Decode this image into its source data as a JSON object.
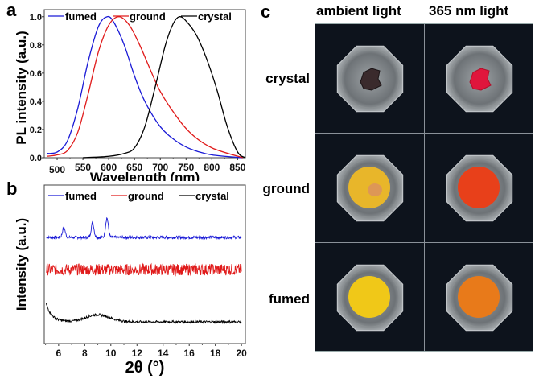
{
  "panels": {
    "a": {
      "letter": "a"
    },
    "b": {
      "letter": "b"
    },
    "c": {
      "letter": "c"
    }
  },
  "chart_data": [
    {
      "id": "a",
      "type": "line",
      "title": "",
      "xlabel": "Wavelength (nm)",
      "ylabel": "PL intensity (a.u.)",
      "xlim": [
        475,
        865
      ],
      "ylim": [
        0.0,
        1.05
      ],
      "xticks": [
        500,
        550,
        600,
        650,
        700,
        750,
        800,
        850
      ],
      "yticks": [
        0.0,
        0.2,
        0.4,
        0.6,
        0.8,
        1.0
      ],
      "ytick_labels": [
        "0.0",
        "0.2",
        "0.4",
        "0.6",
        "0.8",
        "1.0"
      ],
      "legend": {
        "placement": "top",
        "entries": [
          "fumed",
          "ground",
          "crystal"
        ]
      },
      "grid": false,
      "series": [
        {
          "name": "fumed",
          "color": "#1a1ad6",
          "peak_x": 597,
          "x": [
            480,
            500,
            520,
            540,
            560,
            580,
            597,
            610,
            630,
            650,
            670,
            700,
            730,
            760,
            800,
            860
          ],
          "y": [
            0.03,
            0.04,
            0.12,
            0.35,
            0.68,
            0.93,
            1.0,
            0.96,
            0.8,
            0.58,
            0.4,
            0.22,
            0.12,
            0.06,
            0.02,
            0.0
          ]
        },
        {
          "name": "ground",
          "color": "#e01a1a",
          "peak_x": 620,
          "x": [
            480,
            500,
            520,
            540,
            560,
            580,
            600,
            620,
            640,
            660,
            680,
            700,
            730,
            760,
            800,
            860
          ],
          "y": [
            0.01,
            0.02,
            0.05,
            0.18,
            0.45,
            0.75,
            0.94,
            1.0,
            0.94,
            0.8,
            0.63,
            0.47,
            0.3,
            0.17,
            0.07,
            0.0
          ]
        },
        {
          "name": "crystal",
          "color": "#000000",
          "peak_x": 737,
          "x": [
            550,
            600,
            630,
            650,
            670,
            690,
            710,
            725,
            737,
            750,
            770,
            790,
            810,
            830,
            850,
            865
          ],
          "y": [
            0.0,
            0.01,
            0.03,
            0.07,
            0.22,
            0.5,
            0.8,
            0.95,
            1.0,
            0.97,
            0.87,
            0.7,
            0.48,
            0.22,
            0.04,
            0.0
          ]
        }
      ]
    },
    {
      "id": "b",
      "type": "line",
      "title": "",
      "xlabel": "2θ (°)",
      "ylabel": "Intensity (a.u.)",
      "xlim": [
        4.9,
        20.3
      ],
      "xticks": [
        6,
        8,
        10,
        12,
        14,
        16,
        18,
        20
      ],
      "yticks": [],
      "legend": {
        "placement": "top",
        "entries": [
          "fumed",
          "ground",
          "crystal"
        ]
      },
      "grid": false,
      "series": [
        {
          "name": "fumed",
          "color": "#1a1ad6",
          "offset": 2.0,
          "noise": 0.06,
          "peaks_2theta": [
            6.4,
            8.6,
            9.7
          ],
          "peak_heights": [
            0.3,
            0.45,
            0.6
          ]
        },
        {
          "name": "ground",
          "color": "#e01a1a",
          "offset": 1.0,
          "noise": 0.18,
          "peaks_2theta": [],
          "peak_heights": []
        },
        {
          "name": "crystal",
          "color": "#000000",
          "offset": 0.0,
          "noise": 0.05,
          "broad_hump_2theta": 9.0,
          "low_angle_rise": true
        }
      ]
    }
  ],
  "photo_grid": {
    "columns": [
      "ambient light",
      "365 nm light"
    ],
    "rows": [
      "crystal",
      "ground",
      "fumed"
    ],
    "sample_colors": [
      [
        "#3a2a2c",
        "#e0163c"
      ],
      [
        "#e8b62a",
        "#e8401a"
      ],
      [
        "#f0c818",
        "#e87a1a"
      ]
    ]
  }
}
